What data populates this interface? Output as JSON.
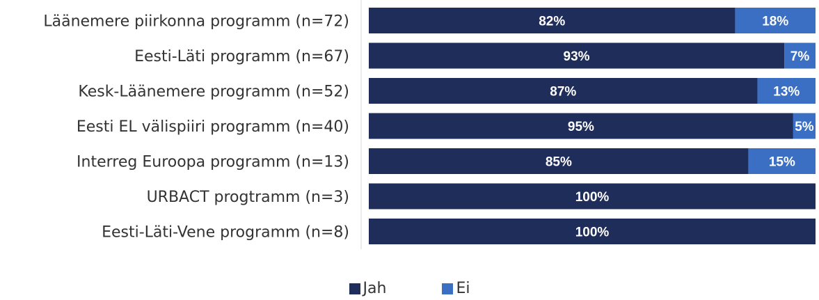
{
  "chart_data": {
    "type": "bar",
    "orientation": "horizontal",
    "stacked": true,
    "categories": [
      "Läänemere piirkonna programm (n=72)",
      "Eesti-Läti programm (n=67)",
      "Kesk-Läänemere programm (n=52)",
      "Eesti EL välispiiri programm (n=40)",
      "Interreg Euroopa programm (n=13)",
      "URBACT progtramm (n=3)",
      "Eesti-Läti-Vene programm (n=8)"
    ],
    "series": [
      {
        "name": "Jah",
        "color": "#1f2d5a",
        "values": [
          82,
          93,
          87,
          95,
          85,
          100,
          100
        ],
        "labels": [
          "82%",
          "93%",
          "87%",
          "95%",
          "85%",
          "100%",
          "100%"
        ]
      },
      {
        "name": "Ei",
        "color": "#3a6fc4",
        "values": [
          18,
          7,
          13,
          5,
          15,
          0,
          0
        ],
        "labels": [
          "18%",
          "7%",
          "13%",
          "5%",
          "15%",
          "",
          ""
        ]
      }
    ],
    "xlim": [
      0,
      100
    ],
    "legend_position": "bottom"
  }
}
